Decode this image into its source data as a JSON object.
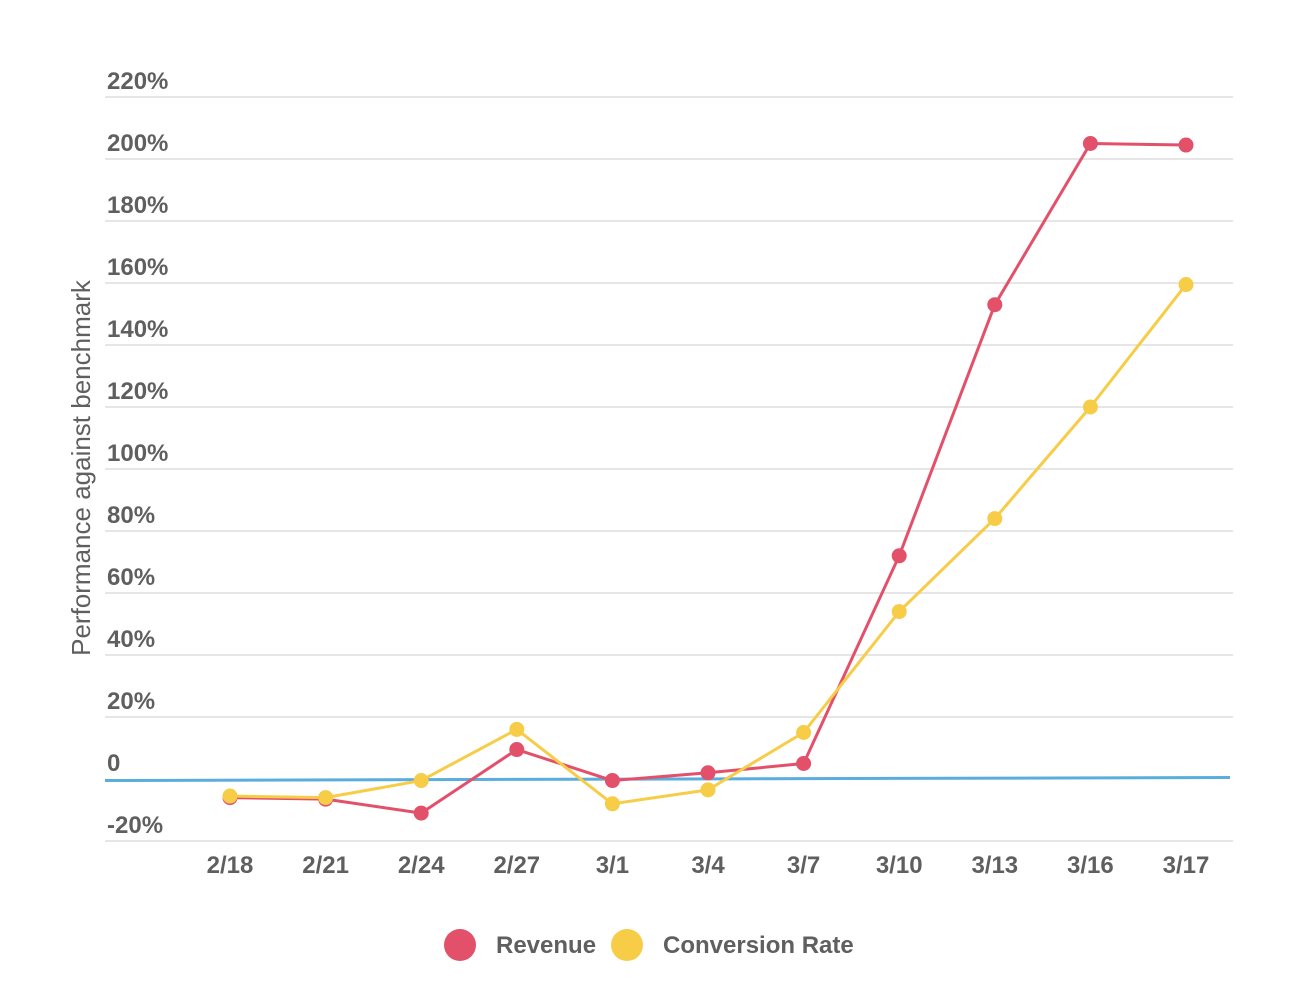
{
  "chart_data": {
    "type": "line",
    "ylabel": "Performance against benchmark",
    "xlabel": "",
    "categories": [
      "2/18",
      "2/21",
      "2/24",
      "2/27",
      "3/1",
      "3/4",
      "3/7",
      "3/10",
      "3/13",
      "3/16",
      "3/17"
    ],
    "ylim": [
      -20,
      220
    ],
    "yticks": [
      -20,
      0,
      20,
      40,
      60,
      80,
      100,
      120,
      140,
      160,
      180,
      200,
      220
    ],
    "ytick_labels": [
      "-20%",
      "0",
      "20%",
      "40%",
      "60%",
      "80%",
      "100%",
      "120%",
      "140%",
      "160%",
      "180%",
      "200%",
      "220%"
    ],
    "grid": true,
    "zero_line": true,
    "legend_position": "bottom-center",
    "series": [
      {
        "name": "Revenue",
        "color": "#e3506a",
        "values": [
          -6,
          -6.5,
          -11,
          9.5,
          -0.5,
          2,
          5,
          72,
          153,
          205,
          204.5
        ]
      },
      {
        "name": "Conversion Rate",
        "color": "#f7cc47",
        "values": [
          -5.5,
          -6,
          -0.5,
          16,
          -8,
          -3.5,
          15,
          54,
          84,
          120,
          159.5
        ]
      }
    ]
  },
  "colors": {
    "zero_line": "#5aaddd",
    "grid": "#dddddd",
    "text": "#5f5f5f"
  }
}
